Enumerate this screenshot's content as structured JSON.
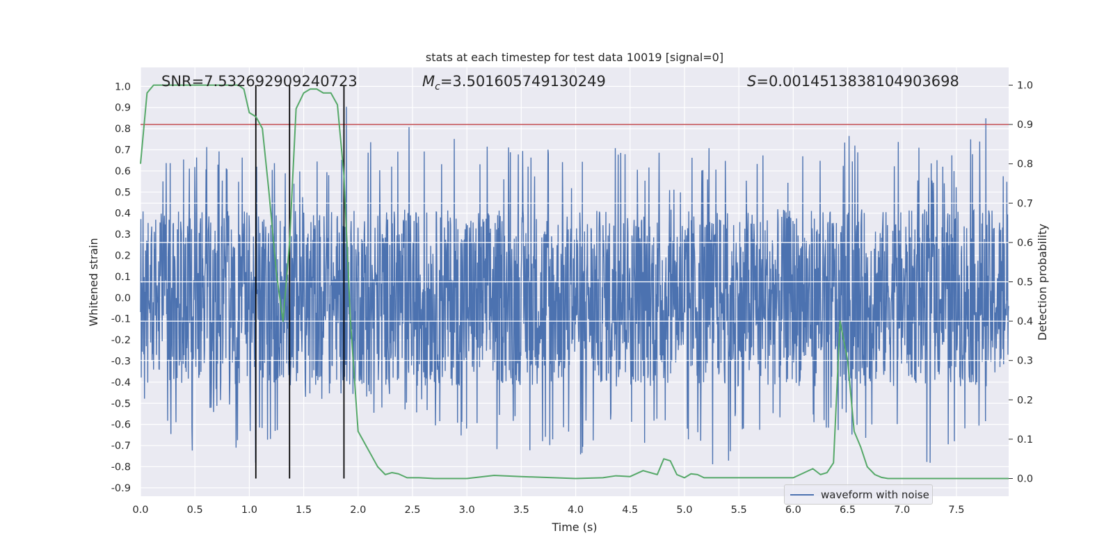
{
  "chart_data": {
    "type": "line",
    "title": "stats at each timestep for test data 10019 [signal=0]",
    "xlabel": "Time (s)",
    "ylabel": "Whitened strain",
    "y2label": "Detection probability",
    "xlim": [
      0.0,
      7.98
    ],
    "ylim": [
      -0.94,
      1.09
    ],
    "y2lim": [
      -0.045,
      1.045
    ],
    "x_ticks": [
      "0.0",
      "0.5",
      "1.0",
      "1.5",
      "2.0",
      "2.5",
      "3.0",
      "3.5",
      "4.0",
      "4.5",
      "5.0",
      "5.5",
      "6.0",
      "6.5",
      "7.0",
      "7.5"
    ],
    "y_ticks": [
      "1.0",
      "0.9",
      "0.8",
      "0.7",
      "0.6",
      "0.5",
      "0.4",
      "0.3",
      "0.2",
      "0.1",
      "0.0",
      "-0.1",
      "-0.2",
      "-0.3",
      "-0.4",
      "-0.5",
      "-0.6",
      "-0.7",
      "-0.8",
      "-0.9"
    ],
    "y2_ticks": [
      "1.0",
      "0.9",
      "0.8",
      "0.7",
      "0.6",
      "0.5",
      "0.4",
      "0.3",
      "0.2",
      "0.1",
      "0.0"
    ],
    "grid": true,
    "legend_position": "lower-right",
    "annotations": {
      "snr": "SNR=7.532692909240723",
      "mc_symbol": "M",
      "mc_sub": "c",
      "mc_value": "=3.501605749130249",
      "s_symbol": "S",
      "s_value": "=0.0014513838104903698"
    },
    "threshold_line": {
      "y2": 0.9,
      "color": "#c44e52"
    },
    "vertical_lines_x": [
      1.06,
      1.37,
      1.87
    ],
    "series": [
      {
        "name": "waveform with noise",
        "axis": "left",
        "color": "#4c72b0",
        "description": "noisy whitened strain, dense band approx -0.3..0.3 with spikes",
        "envelope_x": [
          0.0,
          0.05,
          0.1,
          0.25,
          0.5,
          0.6,
          0.75,
          1.0,
          1.2,
          1.3,
          1.5,
          1.7,
          1.85,
          1.9,
          2.2,
          2.5,
          2.75,
          3.0,
          3.5,
          3.8,
          4.0,
          4.25,
          4.4,
          4.6,
          5.0,
          5.25,
          5.4,
          5.5,
          6.0,
          6.4,
          6.6,
          6.8,
          7.0,
          7.5,
          7.75,
          7.98
        ],
        "envelope_max": [
          0.45,
          0.86,
          0.62,
          0.65,
          0.66,
          0.79,
          0.7,
          0.66,
          0.62,
          0.7,
          0.58,
          0.7,
          0.74,
          0.97,
          0.67,
          0.84,
          0.75,
          0.8,
          0.7,
          0.72,
          0.68,
          0.74,
          0.89,
          0.72,
          0.65,
          0.72,
          0.86,
          0.65,
          0.72,
          0.7,
          0.82,
          0.74,
          0.76,
          0.67,
          0.89,
          0.58
        ],
        "envelope_min": [
          -0.38,
          -0.55,
          -0.5,
          -0.66,
          -0.74,
          -0.5,
          -0.62,
          -0.81,
          -0.71,
          -0.6,
          -0.5,
          -0.55,
          -0.52,
          -0.5,
          -0.6,
          -0.57,
          -0.7,
          -0.73,
          -0.72,
          -0.79,
          -0.76,
          -0.74,
          -0.65,
          -0.72,
          -0.69,
          -0.79,
          -0.84,
          -0.65,
          -0.69,
          -0.62,
          -0.72,
          -0.83,
          -0.75,
          -0.82,
          -0.73,
          -0.45
        ]
      },
      {
        "name": "",
        "axis": "right",
        "color": "#55a868",
        "x": [
          0.0,
          0.06,
          0.12,
          0.2,
          0.3,
          0.5,
          0.75,
          0.9,
          0.95,
          1.0,
          1.06,
          1.12,
          1.18,
          1.25,
          1.31,
          1.37,
          1.43,
          1.5,
          1.56,
          1.62,
          1.68,
          1.75,
          1.81,
          1.87,
          1.93,
          2.0,
          2.06,
          2.12,
          2.18,
          2.25,
          2.31,
          2.37,
          2.45,
          2.5,
          2.56,
          2.7,
          3.0,
          3.25,
          3.5,
          4.0,
          4.25,
          4.37,
          4.5,
          4.62,
          4.75,
          4.81,
          4.87,
          4.93,
          5.0,
          5.06,
          5.12,
          5.18,
          5.25,
          5.5,
          5.75,
          6.0,
          6.18,
          6.25,
          6.31,
          6.37,
          6.43,
          6.5,
          6.56,
          6.62,
          6.68,
          6.75,
          6.81,
          6.87,
          7.0,
          7.5,
          7.98
        ],
        "y": [
          0.8,
          0.98,
          1.0,
          1.0,
          1.0,
          1.0,
          1.0,
          1.0,
          0.99,
          0.93,
          0.92,
          0.89,
          0.73,
          0.52,
          0.4,
          0.6,
          0.94,
          0.98,
          0.99,
          0.99,
          0.98,
          0.98,
          0.95,
          0.77,
          0.4,
          0.12,
          0.09,
          0.06,
          0.03,
          0.01,
          0.015,
          0.012,
          0.002,
          0.002,
          0.002,
          0.0,
          0.0,
          0.008,
          0.005,
          0.0,
          0.002,
          0.007,
          0.005,
          0.02,
          0.01,
          0.05,
          0.045,
          0.01,
          0.002,
          0.012,
          0.01,
          0.002,
          0.002,
          0.002,
          0.002,
          0.002,
          0.025,
          0.01,
          0.015,
          0.04,
          0.4,
          0.3,
          0.12,
          0.08,
          0.03,
          0.01,
          0.003,
          0.0,
          0.0,
          0.0,
          0.0
        ]
      }
    ]
  }
}
